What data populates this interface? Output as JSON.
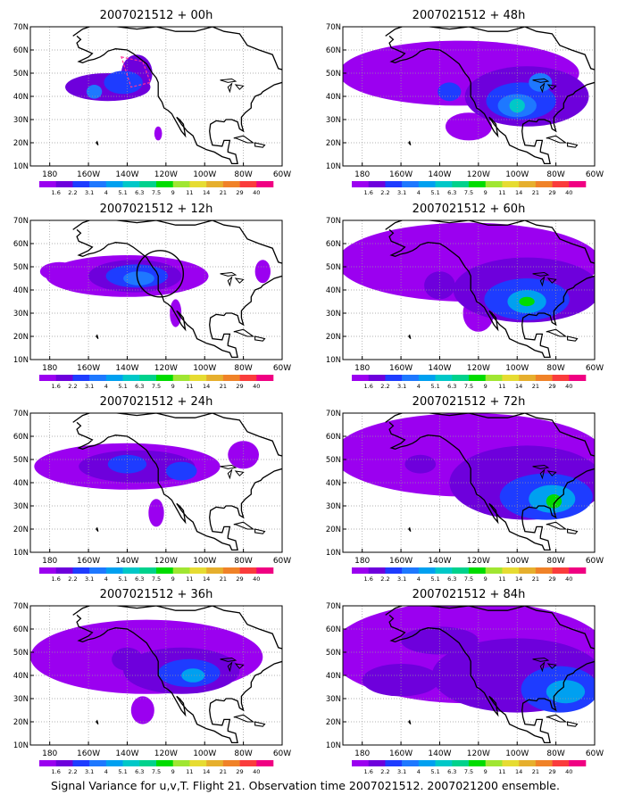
{
  "figure": {
    "caption": "Signal Variance for u,v,T. Flight 21. Observation time 2007021512. 2007021200 ensemble."
  },
  "shared_axes": {
    "lon_ticks": [
      "180",
      "160W",
      "140W",
      "120W",
      "100W",
      "80W",
      "60W"
    ],
    "lat_ticks": [
      "70N",
      "60N",
      "50N",
      "40N",
      "30N",
      "20N",
      "10N"
    ]
  },
  "colorbar": {
    "labels": [
      "1.6",
      "2.2",
      "3.1",
      "4",
      "5.1",
      "6.3",
      "7.5",
      "9",
      "11",
      "14",
      "21",
      "29",
      "40"
    ],
    "colors": [
      "#9b00f0",
      "#6e00dc",
      "#1e3cff",
      "#1e78ff",
      "#00a0f0",
      "#00c8c8",
      "#00d28c",
      "#00dc00",
      "#a0e632",
      "#e6dc32",
      "#e6af2d",
      "#f08228",
      "#fa3c3c",
      "#f00082"
    ]
  },
  "chart_data": [
    {
      "type": "heatmap",
      "title": "2007021512 + 00h",
      "xlabel": "",
      "ylabel": "",
      "xlim": [
        -190,
        -60
      ],
      "ylim": [
        10,
        70
      ],
      "grid": true,
      "marker": "dashed-box",
      "blobs": [
        {
          "lon": -150,
          "lat": 44,
          "rx": 22,
          "ry": 6,
          "level": 2
        },
        {
          "lon": -142,
          "lat": 46,
          "rx": 10,
          "ry": 5,
          "level": 3
        },
        {
          "lon": -135,
          "lat": 50,
          "rx": 8,
          "ry": 8,
          "level": 2
        },
        {
          "lon": -157,
          "lat": 42,
          "rx": 4,
          "ry": 3,
          "level": 4
        },
        {
          "lon": -124,
          "lat": 24,
          "rx": 2,
          "ry": 3,
          "level": 1
        }
      ]
    },
    {
      "type": "heatmap",
      "title": "2007021512 + 48h",
      "xlabel": "",
      "ylabel": "",
      "xlim": [
        -190,
        -60
      ],
      "ylim": [
        10,
        70
      ],
      "grid": true,
      "blobs": [
        {
          "lon": -130,
          "lat": 50,
          "rx": 62,
          "ry": 14,
          "level": 1
        },
        {
          "lon": -95,
          "lat": 40,
          "rx": 32,
          "ry": 13,
          "level": 2
        },
        {
          "lon": -98,
          "lat": 38,
          "rx": 18,
          "ry": 8,
          "level": 3
        },
        {
          "lon": -100,
          "lat": 36,
          "rx": 10,
          "ry": 5,
          "level": 4
        },
        {
          "lon": -100,
          "lat": 36,
          "rx": 4,
          "ry": 3,
          "level": 6
        },
        {
          "lon": -135,
          "lat": 42,
          "rx": 6,
          "ry": 4,
          "level": 3
        },
        {
          "lon": -125,
          "lat": 27,
          "rx": 12,
          "ry": 6,
          "level": 1
        },
        {
          "lon": -88,
          "lat": 46,
          "rx": 6,
          "ry": 4,
          "level": 4
        }
      ]
    },
    {
      "type": "heatmap",
      "title": "2007021512 + 12h",
      "xlabel": "",
      "ylabel": "",
      "xlim": [
        -190,
        -60
      ],
      "ylim": [
        10,
        70
      ],
      "grid": true,
      "marker": "circle",
      "blobs": [
        {
          "lon": -140,
          "lat": 46,
          "rx": 42,
          "ry": 9,
          "level": 1
        },
        {
          "lon": -136,
          "lat": 46,
          "rx": 24,
          "ry": 7,
          "level": 2
        },
        {
          "lon": -135,
          "lat": 46,
          "rx": 16,
          "ry": 5,
          "level": 3
        },
        {
          "lon": -134,
          "lat": 45,
          "rx": 8,
          "ry": 3,
          "level": 4
        },
        {
          "lon": -175,
          "lat": 48,
          "rx": 10,
          "ry": 4,
          "level": 1
        },
        {
          "lon": -115,
          "lat": 30,
          "rx": 3,
          "ry": 6,
          "level": 1
        },
        {
          "lon": -70,
          "lat": 48,
          "rx": 4,
          "ry": 5,
          "level": 1
        }
      ]
    },
    {
      "type": "heatmap",
      "title": "2007021512 + 60h",
      "xlabel": "",
      "ylabel": "",
      "xlim": [
        -190,
        -60
      ],
      "ylim": [
        10,
        70
      ],
      "grid": true,
      "blobs": [
        {
          "lon": -125,
          "lat": 52,
          "rx": 68,
          "ry": 17,
          "level": 1
        },
        {
          "lon": -95,
          "lat": 40,
          "rx": 38,
          "ry": 14,
          "level": 2
        },
        {
          "lon": -95,
          "lat": 36,
          "rx": 22,
          "ry": 9,
          "level": 3
        },
        {
          "lon": -95,
          "lat": 35,
          "rx": 10,
          "ry": 5,
          "level": 5
        },
        {
          "lon": -95,
          "lat": 35,
          "rx": 4,
          "ry": 2,
          "level": 8
        },
        {
          "lon": -140,
          "lat": 42,
          "rx": 8,
          "ry": 6,
          "level": 2
        },
        {
          "lon": -120,
          "lat": 30,
          "rx": 8,
          "ry": 8,
          "level": 1
        }
      ]
    },
    {
      "type": "heatmap",
      "title": "2007021512 + 24h",
      "xlabel": "",
      "ylabel": "",
      "xlim": [
        -190,
        -60
      ],
      "ylim": [
        10,
        70
      ],
      "grid": true,
      "blobs": [
        {
          "lon": -140,
          "lat": 47,
          "rx": 48,
          "ry": 10,
          "level": 1
        },
        {
          "lon": -135,
          "lat": 47,
          "rx": 30,
          "ry": 7,
          "level": 2
        },
        {
          "lon": -140,
          "lat": 48,
          "rx": 10,
          "ry": 4,
          "level": 3
        },
        {
          "lon": -112,
          "lat": 45,
          "rx": 8,
          "ry": 4,
          "level": 3
        },
        {
          "lon": -125,
          "lat": 27,
          "rx": 4,
          "ry": 6,
          "level": 1
        },
        {
          "lon": -80,
          "lat": 52,
          "rx": 8,
          "ry": 6,
          "level": 1
        }
      ]
    },
    {
      "type": "heatmap",
      "title": "2007021512 + 72h",
      "xlabel": "",
      "ylabel": "",
      "xlim": [
        -190,
        -60
      ],
      "ylim": [
        10,
        70
      ],
      "grid": true,
      "blobs": [
        {
          "lon": -125,
          "lat": 52,
          "rx": 70,
          "ry": 18,
          "level": 1
        },
        {
          "lon": -95,
          "lat": 40,
          "rx": 40,
          "ry": 16,
          "level": 2
        },
        {
          "lon": -85,
          "lat": 34,
          "rx": 24,
          "ry": 10,
          "level": 3
        },
        {
          "lon": -82,
          "lat": 33,
          "rx": 12,
          "ry": 6,
          "level": 5
        },
        {
          "lon": -81,
          "lat": 32,
          "rx": 4,
          "ry": 3,
          "level": 8
        },
        {
          "lon": -150,
          "lat": 48,
          "rx": 8,
          "ry": 4,
          "level": 2
        }
      ]
    },
    {
      "type": "heatmap",
      "title": "2007021512 + 36h",
      "xlabel": "",
      "ylabel": "",
      "xlim": [
        -190,
        -60
      ],
      "ylim": [
        10,
        70
      ],
      "grid": true,
      "blobs": [
        {
          "lon": -130,
          "lat": 48,
          "rx": 60,
          "ry": 16,
          "level": 1
        },
        {
          "lon": -112,
          "lat": 42,
          "rx": 30,
          "ry": 10,
          "level": 2
        },
        {
          "lon": -108,
          "lat": 41,
          "rx": 16,
          "ry": 6,
          "level": 3
        },
        {
          "lon": -106,
          "lat": 40,
          "rx": 6,
          "ry": 3,
          "level": 5
        },
        {
          "lon": -140,
          "lat": 47,
          "rx": 8,
          "ry": 5,
          "level": 2
        },
        {
          "lon": -132,
          "lat": 25,
          "rx": 6,
          "ry": 6,
          "level": 1
        }
      ]
    },
    {
      "type": "heatmap",
      "title": "2007021512 + 84h",
      "xlabel": "",
      "ylabel": "",
      "xlim": [
        -190,
        -60
      ],
      "ylim": [
        10,
        70
      ],
      "grid": true,
      "blobs": [
        {
          "lon": -125,
          "lat": 50,
          "rx": 72,
          "ry": 22,
          "level": 1
        },
        {
          "lon": -100,
          "lat": 40,
          "rx": 44,
          "ry": 16,
          "level": 2
        },
        {
          "lon": -78,
          "lat": 34,
          "rx": 20,
          "ry": 10,
          "level": 3
        },
        {
          "lon": -75,
          "lat": 33,
          "rx": 10,
          "ry": 5,
          "level": 5
        },
        {
          "lon": -160,
          "lat": 38,
          "rx": 20,
          "ry": 7,
          "level": 2
        },
        {
          "lon": -140,
          "lat": 55,
          "rx": 20,
          "ry": 6,
          "level": 2
        }
      ]
    }
  ]
}
